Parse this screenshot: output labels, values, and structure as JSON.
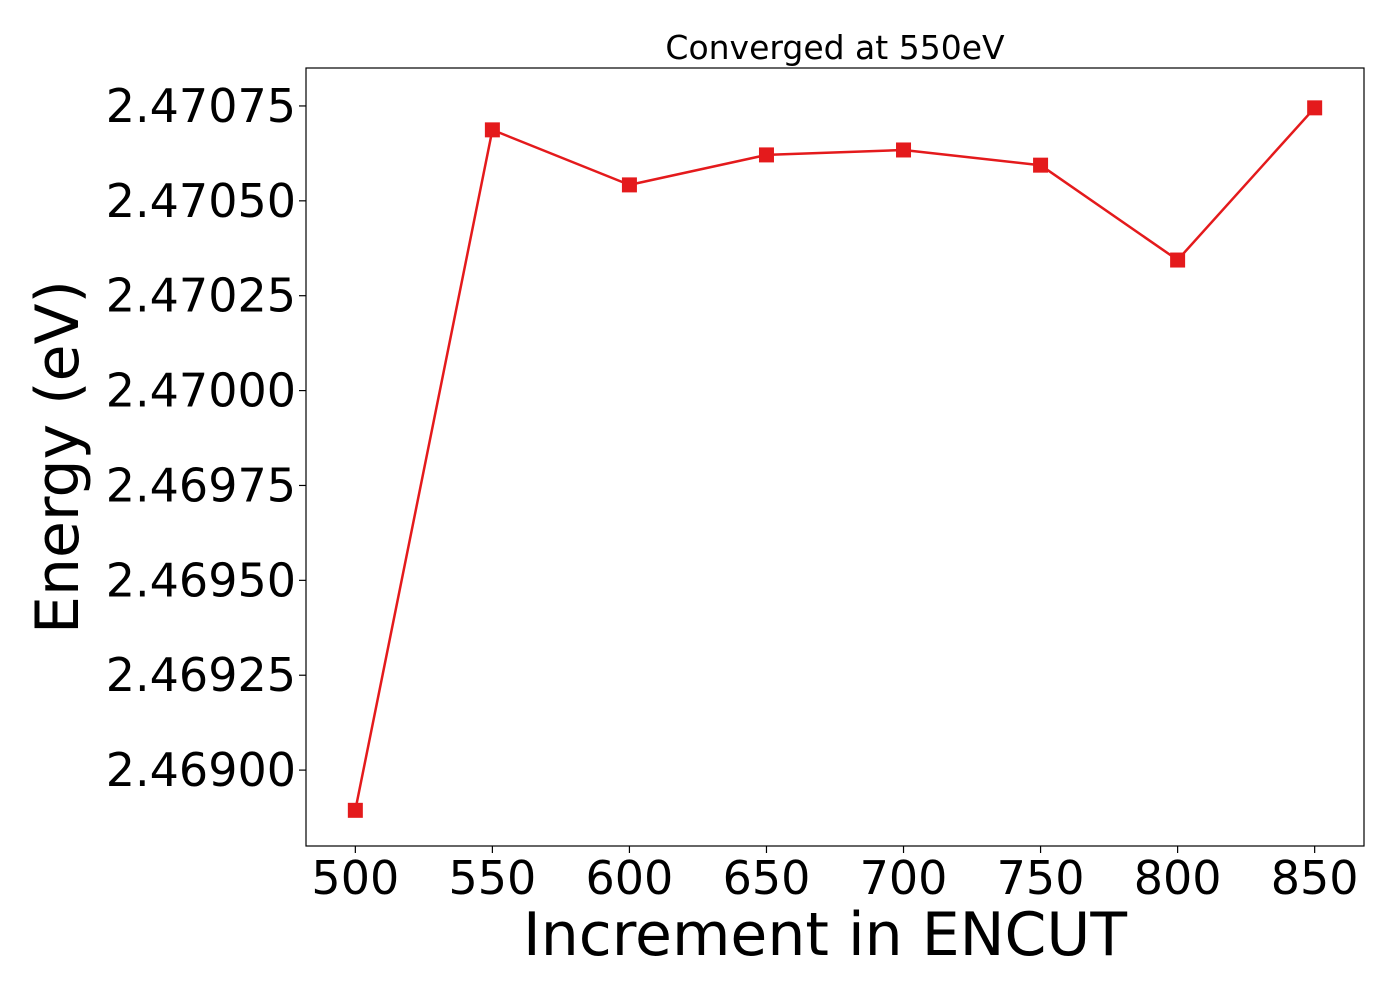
{
  "chart_data": {
    "type": "line",
    "title": "Converged at 550eV",
    "xlabel": "Increment in ENCUT",
    "ylabel": "Energy (eV)",
    "x": [
      500,
      550,
      600,
      650,
      700,
      750,
      800,
      850
    ],
    "series": [
      {
        "values": [
          2.468894,
          2.470687,
          2.470542,
          2.470621,
          2.470634,
          2.470594,
          2.470344,
          2.470745
        ],
        "color": "#e41a1c",
        "marker": "square"
      }
    ],
    "xlim": [
      482,
      868
    ],
    "ylim": [
      2.4688,
      2.47085
    ],
    "xticks": [
      500,
      550,
      600,
      650,
      700,
      750,
      800,
      850
    ],
    "xtick_labels": [
      "500",
      "550",
      "600",
      "650",
      "700",
      "750",
      "800",
      "850"
    ],
    "yticks": [
      2.469,
      2.46925,
      2.4695,
      2.46975,
      2.47,
      2.47025,
      2.4705,
      2.47075
    ],
    "ytick_labels": [
      "2.46900",
      "2.46925",
      "2.46950",
      "2.46975",
      "2.47000",
      "2.47025",
      "2.47050",
      "2.47075"
    ],
    "grid": false,
    "legend": false
  }
}
